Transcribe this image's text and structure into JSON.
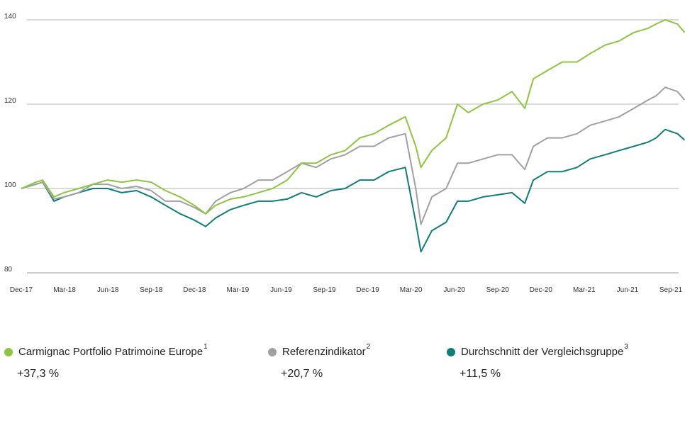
{
  "chart_data": {
    "type": "line",
    "x_ticks": [
      "Dec-17",
      "Mar-18",
      "Jun-18",
      "Sep-18",
      "Dec-18",
      "Mar-19",
      "Jun-19",
      "Sep-19",
      "Dec-19",
      "Mar-20",
      "Jun-20",
      "Sep-20",
      "Dec-20",
      "Mar-21",
      "Jun-21",
      "Sep-21"
    ],
    "y_ticks": [
      80,
      100,
      120,
      140
    ],
    "ylim": [
      80,
      142
    ],
    "grid": "horizontal",
    "legend_position": "bottom",
    "series": [
      {
        "name": "Carmignac Portfolio Patrimoine Europe",
        "footnote": "1",
        "color": "#8cc63f",
        "performance": "+37,3 %",
        "values": [
          [
            "2017-12-01",
            100
          ],
          [
            "2018-01-01",
            101.5
          ],
          [
            "2018-01-15",
            102
          ],
          [
            "2018-02-08",
            98
          ],
          [
            "2018-03-01",
            99
          ],
          [
            "2018-04-01",
            100
          ],
          [
            "2018-05-01",
            101
          ],
          [
            "2018-06-01",
            102
          ],
          [
            "2018-07-01",
            101.5
          ],
          [
            "2018-08-01",
            102
          ],
          [
            "2018-09-01",
            101.5
          ],
          [
            "2018-10-01",
            99.5
          ],
          [
            "2018-11-01",
            98
          ],
          [
            "2018-12-01",
            96
          ],
          [
            "2018-12-25",
            94
          ],
          [
            "2019-01-15",
            96
          ],
          [
            "2019-02-15",
            97.5
          ],
          [
            "2019-03-15",
            98
          ],
          [
            "2019-04-15",
            99
          ],
          [
            "2019-05-15",
            100
          ],
          [
            "2019-06-15",
            102
          ],
          [
            "2019-07-15",
            106
          ],
          [
            "2019-08-15",
            106
          ],
          [
            "2019-09-15",
            108
          ],
          [
            "2019-10-15",
            109
          ],
          [
            "2019-11-15",
            112
          ],
          [
            "2019-12-15",
            113
          ],
          [
            "2020-01-15",
            115
          ],
          [
            "2020-02-19",
            117
          ],
          [
            "2020-03-12",
            110
          ],
          [
            "2020-03-23",
            105
          ],
          [
            "2020-04-15",
            109
          ],
          [
            "2020-05-15",
            112
          ],
          [
            "2020-06-08",
            120
          ],
          [
            "2020-07-01",
            118
          ],
          [
            "2020-08-01",
            120
          ],
          [
            "2020-09-01",
            121
          ],
          [
            "2020-10-01",
            123
          ],
          [
            "2020-10-28",
            119
          ],
          [
            "2020-11-15",
            126
          ],
          [
            "2020-12-15",
            128
          ],
          [
            "2021-01-15",
            130
          ],
          [
            "2021-02-15",
            130
          ],
          [
            "2021-03-15",
            132
          ],
          [
            "2021-04-15",
            134
          ],
          [
            "2021-05-15",
            135
          ],
          [
            "2021-06-15",
            137
          ],
          [
            "2021-07-15",
            138
          ],
          [
            "2021-08-01",
            139
          ],
          [
            "2021-08-20",
            140
          ],
          [
            "2021-09-15",
            139
          ],
          [
            "2021-09-30",
            137
          ]
        ]
      },
      {
        "name": "Referenzindikator",
        "footnote": "2",
        "color": "#a0a0a0",
        "performance": "+20,7 %",
        "values": [
          [
            "2017-12-01",
            100
          ],
          [
            "2018-01-01",
            101
          ],
          [
            "2018-01-15",
            101.5
          ],
          [
            "2018-02-08",
            97.5
          ],
          [
            "2018-03-01",
            98
          ],
          [
            "2018-04-01",
            99
          ],
          [
            "2018-05-01",
            101
          ],
          [
            "2018-06-01",
            101
          ],
          [
            "2018-07-01",
            100
          ],
          [
            "2018-08-01",
            100.5
          ],
          [
            "2018-09-01",
            99.5
          ],
          [
            "2018-10-01",
            97
          ],
          [
            "2018-11-01",
            97
          ],
          [
            "2018-12-01",
            95.5
          ],
          [
            "2018-12-25",
            94
          ],
          [
            "2019-01-15",
            97
          ],
          [
            "2019-02-15",
            99
          ],
          [
            "2019-03-15",
            100
          ],
          [
            "2019-04-15",
            102
          ],
          [
            "2019-05-15",
            102
          ],
          [
            "2019-06-15",
            104
          ],
          [
            "2019-07-15",
            106
          ],
          [
            "2019-08-15",
            105
          ],
          [
            "2019-09-15",
            107
          ],
          [
            "2019-10-15",
            108
          ],
          [
            "2019-11-15",
            110
          ],
          [
            "2019-12-15",
            110
          ],
          [
            "2020-01-15",
            112
          ],
          [
            "2020-02-19",
            113
          ],
          [
            "2020-03-12",
            100
          ],
          [
            "2020-03-23",
            91.5
          ],
          [
            "2020-04-15",
            98
          ],
          [
            "2020-05-15",
            100
          ],
          [
            "2020-06-08",
            106
          ],
          [
            "2020-07-01",
            106
          ],
          [
            "2020-08-01",
            107
          ],
          [
            "2020-09-01",
            108
          ],
          [
            "2020-10-01",
            108
          ],
          [
            "2020-10-28",
            104.5
          ],
          [
            "2020-11-15",
            110
          ],
          [
            "2020-12-15",
            112
          ],
          [
            "2021-01-15",
            112
          ],
          [
            "2021-02-15",
            113
          ],
          [
            "2021-03-15",
            115
          ],
          [
            "2021-04-15",
            116
          ],
          [
            "2021-05-15",
            117
          ],
          [
            "2021-06-15",
            119
          ],
          [
            "2021-07-15",
            121
          ],
          [
            "2021-08-01",
            122
          ],
          [
            "2021-08-20",
            124
          ],
          [
            "2021-09-15",
            123
          ],
          [
            "2021-09-30",
            121
          ]
        ]
      },
      {
        "name": "Durchschnitt der Vergleichsgruppe",
        "footnote": "3",
        "color": "#0f7d78",
        "performance": "+11,5 %",
        "values": [
          [
            "2017-12-01",
            100
          ],
          [
            "2018-01-01",
            101
          ],
          [
            "2018-01-15",
            101.5
          ],
          [
            "2018-02-08",
            97
          ],
          [
            "2018-03-01",
            98
          ],
          [
            "2018-04-01",
            99
          ],
          [
            "2018-05-01",
            100
          ],
          [
            "2018-06-01",
            100
          ],
          [
            "2018-07-01",
            99
          ],
          [
            "2018-08-01",
            99.5
          ],
          [
            "2018-09-01",
            98
          ],
          [
            "2018-10-01",
            96
          ],
          [
            "2018-11-01",
            94
          ],
          [
            "2018-12-01",
            92.5
          ],
          [
            "2018-12-25",
            91
          ],
          [
            "2019-01-15",
            93
          ],
          [
            "2019-02-15",
            95
          ],
          [
            "2019-03-15",
            96
          ],
          [
            "2019-04-15",
            97
          ],
          [
            "2019-05-15",
            97
          ],
          [
            "2019-06-15",
            97.5
          ],
          [
            "2019-07-15",
            99
          ],
          [
            "2019-08-15",
            98
          ],
          [
            "2019-09-15",
            99.5
          ],
          [
            "2019-10-15",
            100
          ],
          [
            "2019-11-15",
            102
          ],
          [
            "2019-12-15",
            102
          ],
          [
            "2020-01-15",
            104
          ],
          [
            "2020-02-19",
            105
          ],
          [
            "2020-03-12",
            92
          ],
          [
            "2020-03-23",
            85
          ],
          [
            "2020-04-15",
            90
          ],
          [
            "2020-05-15",
            92
          ],
          [
            "2020-06-08",
            97
          ],
          [
            "2020-07-01",
            97
          ],
          [
            "2020-08-01",
            98
          ],
          [
            "2020-09-01",
            98.5
          ],
          [
            "2020-10-01",
            99
          ],
          [
            "2020-10-28",
            96.5
          ],
          [
            "2020-11-15",
            102
          ],
          [
            "2020-12-15",
            104
          ],
          [
            "2021-01-15",
            104
          ],
          [
            "2021-02-15",
            105
          ],
          [
            "2021-03-15",
            107
          ],
          [
            "2021-04-15",
            108
          ],
          [
            "2021-05-15",
            109
          ],
          [
            "2021-06-15",
            110
          ],
          [
            "2021-07-15",
            111
          ],
          [
            "2021-08-01",
            112
          ],
          [
            "2021-08-20",
            114
          ],
          [
            "2021-09-15",
            113
          ],
          [
            "2021-09-30",
            111.5
          ]
        ]
      }
    ]
  }
}
